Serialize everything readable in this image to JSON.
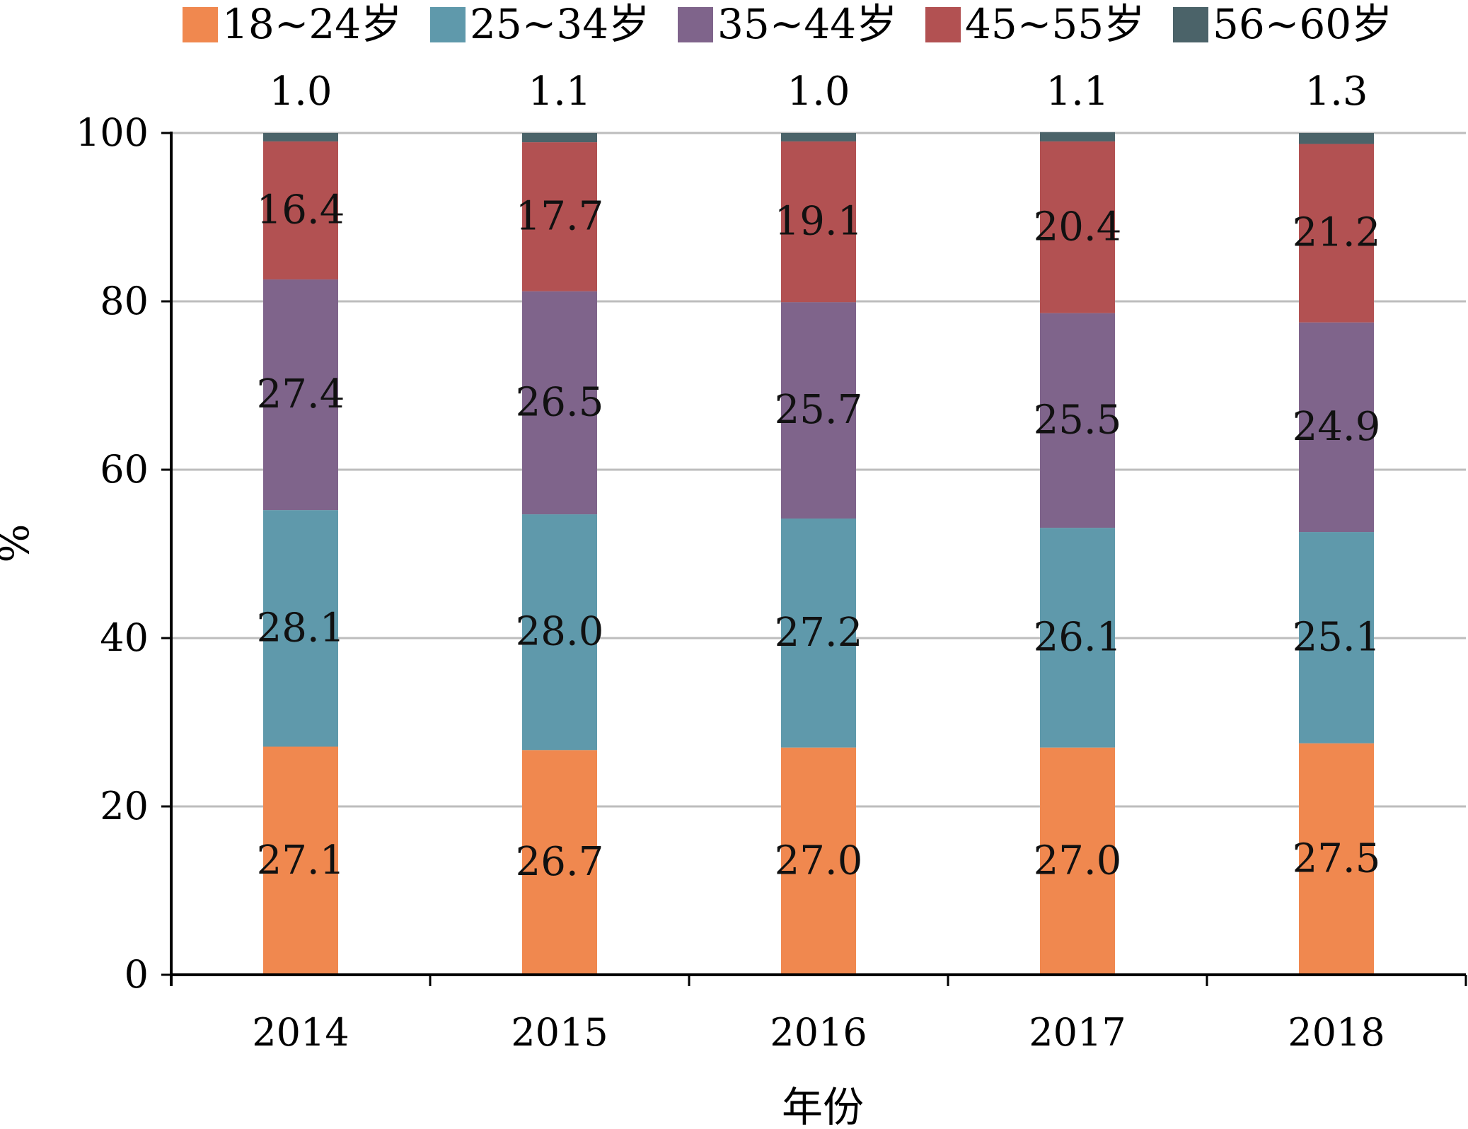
{
  "chart_data": {
    "type": "bar",
    "stacked": true,
    "categories": [
      "2014",
      "2015",
      "2016",
      "2017",
      "2018"
    ],
    "series": [
      {
        "name": "18~24岁",
        "color": "#f0884f",
        "values": [
          27.1,
          26.7,
          27.0,
          27.0,
          27.5
        ]
      },
      {
        "name": "25~34岁",
        "color": "#5f99ab",
        "values": [
          28.1,
          28.0,
          27.2,
          26.1,
          25.1
        ]
      },
      {
        "name": "35~44岁",
        "color": "#7f648b",
        "values": [
          27.4,
          26.5,
          25.7,
          25.5,
          24.9
        ]
      },
      {
        "name": "45~55岁",
        "color": "#b25152",
        "values": [
          16.4,
          17.7,
          19.1,
          20.4,
          21.2
        ]
      },
      {
        "name": "56~60岁",
        "color": "#4b6369",
        "values": [
          1.0,
          1.1,
          1.0,
          1.1,
          1.3
        ]
      }
    ],
    "top_labels": [
      "1.0",
      "1.1",
      "1.0",
      "1.1",
      "1.3"
    ],
    "xlabel": "年份",
    "ylabel": "%",
    "ylim": [
      0,
      100
    ],
    "yticks": [
      0,
      20,
      40,
      60,
      80,
      100
    ],
    "grid": true,
    "legend": "top"
  }
}
